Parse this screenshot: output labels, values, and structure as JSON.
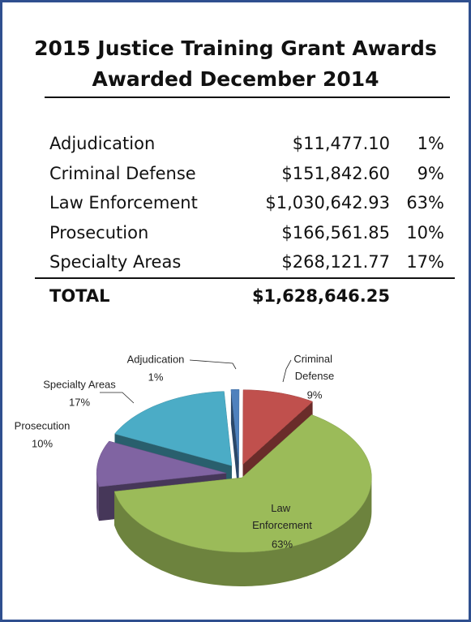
{
  "header": {
    "title": [
      "2015 Justice Training Grant Awards",
      "Awarded December 2014"
    ]
  },
  "table": {
    "rows": [
      [
        "Adjudication",
        "$11,477.10",
        "1%"
      ],
      [
        "Criminal Defense",
        "$151,842.60",
        "9%"
      ],
      [
        "Law Enforcement",
        "$1,030,642.93",
        "63%"
      ],
      [
        "Prosecution",
        "$166,561.85",
        "10%"
      ],
      [
        "Specialty Areas",
        "$268,121.77",
        "17%"
      ]
    ],
    "total": [
      "TOTAL",
      "$1,628,646.25"
    ]
  },
  "chart_data": {
    "type": "pie",
    "categories": [
      "Adjudication",
      "Criminal Defense",
      "Law Enforcement",
      "Prosecution",
      "Specialty Areas"
    ],
    "values": [
      1,
      9,
      63,
      10,
      17
    ],
    "value_labels": [
      "1%",
      "9%",
      "63%",
      "10%",
      "17%"
    ],
    "colors": [
      "#4f81bd",
      "#c0504d",
      "#9bbb59",
      "#8064a2",
      "#4bacc6"
    ]
  }
}
